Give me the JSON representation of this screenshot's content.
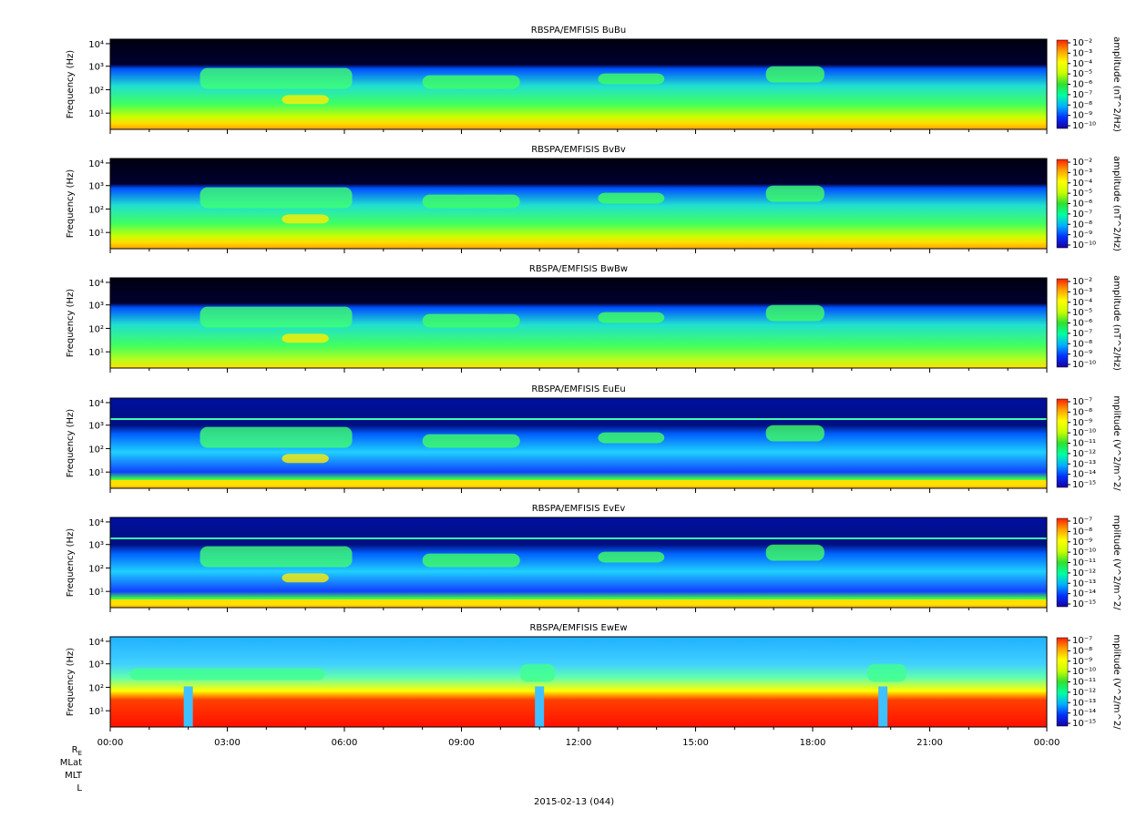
{
  "footer": {
    "date_label": "2015-02-13 (044)",
    "ephemeris_labels": [
      "R",
      "MLat",
      "MLT",
      "L"
    ],
    "ephemeris_subscript": "E"
  },
  "chart_data": {
    "type": "heatmap",
    "shared_x": {
      "tick_labels": [
        "00:00",
        "03:00",
        "06:00",
        "09:00",
        "12:00",
        "15:00",
        "18:00",
        "21:00",
        "00:00"
      ],
      "range_hours": [
        0,
        24
      ]
    },
    "colormap": [
      "#1a00a0",
      "#0030ff",
      "#00b0ff",
      "#00ffa0",
      "#30e030",
      "#c8ff00",
      "#ffff00",
      "#ffa000",
      "#ff2000"
    ],
    "panels": [
      {
        "title": "RBSPA/EMFISIS  BuBu",
        "ylabel": "Frequency (Hz)",
        "y_tick_labels": [
          "10¹",
          "10²",
          "10³",
          "10⁴"
        ],
        "colorbar_label": "amplitude (nT^2/Hz)",
        "colorbar_ticks": [
          "10⁻²",
          "10⁻³",
          "10⁻⁴",
          "10⁻⁵",
          "10⁻⁶",
          "10⁻⁷",
          "10⁻⁸",
          "10⁻⁹",
          "10⁻¹⁰"
        ],
        "kind": "B"
      },
      {
        "title": "RBSPA/EMFISIS  BvBv",
        "ylabel": "Frequency (Hz)",
        "y_tick_labels": [
          "10¹",
          "10²",
          "10³",
          "10⁴"
        ],
        "colorbar_label": "amplitude (nT^2/Hz)",
        "colorbar_ticks": [
          "10⁻²",
          "10⁻³",
          "10⁻⁴",
          "10⁻⁵",
          "10⁻⁶",
          "10⁻⁷",
          "10⁻⁸",
          "10⁻⁹",
          "10⁻¹⁰"
        ],
        "kind": "B"
      },
      {
        "title": "RBSPA/EMFISIS  BwBw",
        "ylabel": "Frequency (Hz)",
        "y_tick_labels": [
          "10¹",
          "10²",
          "10³",
          "10⁴"
        ],
        "colorbar_label": "amplitude (nT^2/Hz)",
        "colorbar_ticks": [
          "10⁻²",
          "10⁻³",
          "10⁻⁴",
          "10⁻⁵",
          "10⁻⁶",
          "10⁻⁷",
          "10⁻⁸",
          "10⁻⁹",
          "10⁻¹⁰"
        ],
        "kind": "Bw"
      },
      {
        "title": "RBSPA/EMFISIS  EuEu",
        "ylabel": "Frequency (Hz)",
        "y_tick_labels": [
          "10¹",
          "10²",
          "10³",
          "10⁴"
        ],
        "colorbar_label": "mplitude (V^2/m^2/",
        "colorbar_ticks": [
          "10⁻⁷",
          "10⁻⁸",
          "10⁻⁹",
          "10⁻¹⁰",
          "10⁻¹¹",
          "10⁻¹²",
          "10⁻¹³",
          "10⁻¹⁴",
          "10⁻¹⁵"
        ],
        "kind": "E"
      },
      {
        "title": "RBSPA/EMFISIS  EvEv",
        "ylabel": "Frequency (Hz)",
        "y_tick_labels": [
          "10¹",
          "10²",
          "10³",
          "10⁴"
        ],
        "colorbar_label": "mplitude (V^2/m^2/",
        "colorbar_ticks": [
          "10⁻⁷",
          "10⁻⁸",
          "10⁻⁹",
          "10⁻¹⁰",
          "10⁻¹¹",
          "10⁻¹²",
          "10⁻¹³",
          "10⁻¹⁴",
          "10⁻¹⁵"
        ],
        "kind": "E"
      },
      {
        "title": "RBSPA/EMFISIS  EwEw",
        "ylabel": "Frequency (Hz)",
        "y_tick_labels": [
          "10¹",
          "10²",
          "10³",
          "10⁴"
        ],
        "colorbar_label": "mplitude (V^2/m^2/",
        "colorbar_ticks": [
          "10⁻⁷",
          "10⁻⁸",
          "10⁻⁹",
          "10⁻¹⁰",
          "10⁻¹¹",
          "10⁻¹²",
          "10⁻¹³",
          "10⁻¹⁴",
          "10⁻¹⁵"
        ],
        "kind": "Ew"
      }
    ]
  }
}
